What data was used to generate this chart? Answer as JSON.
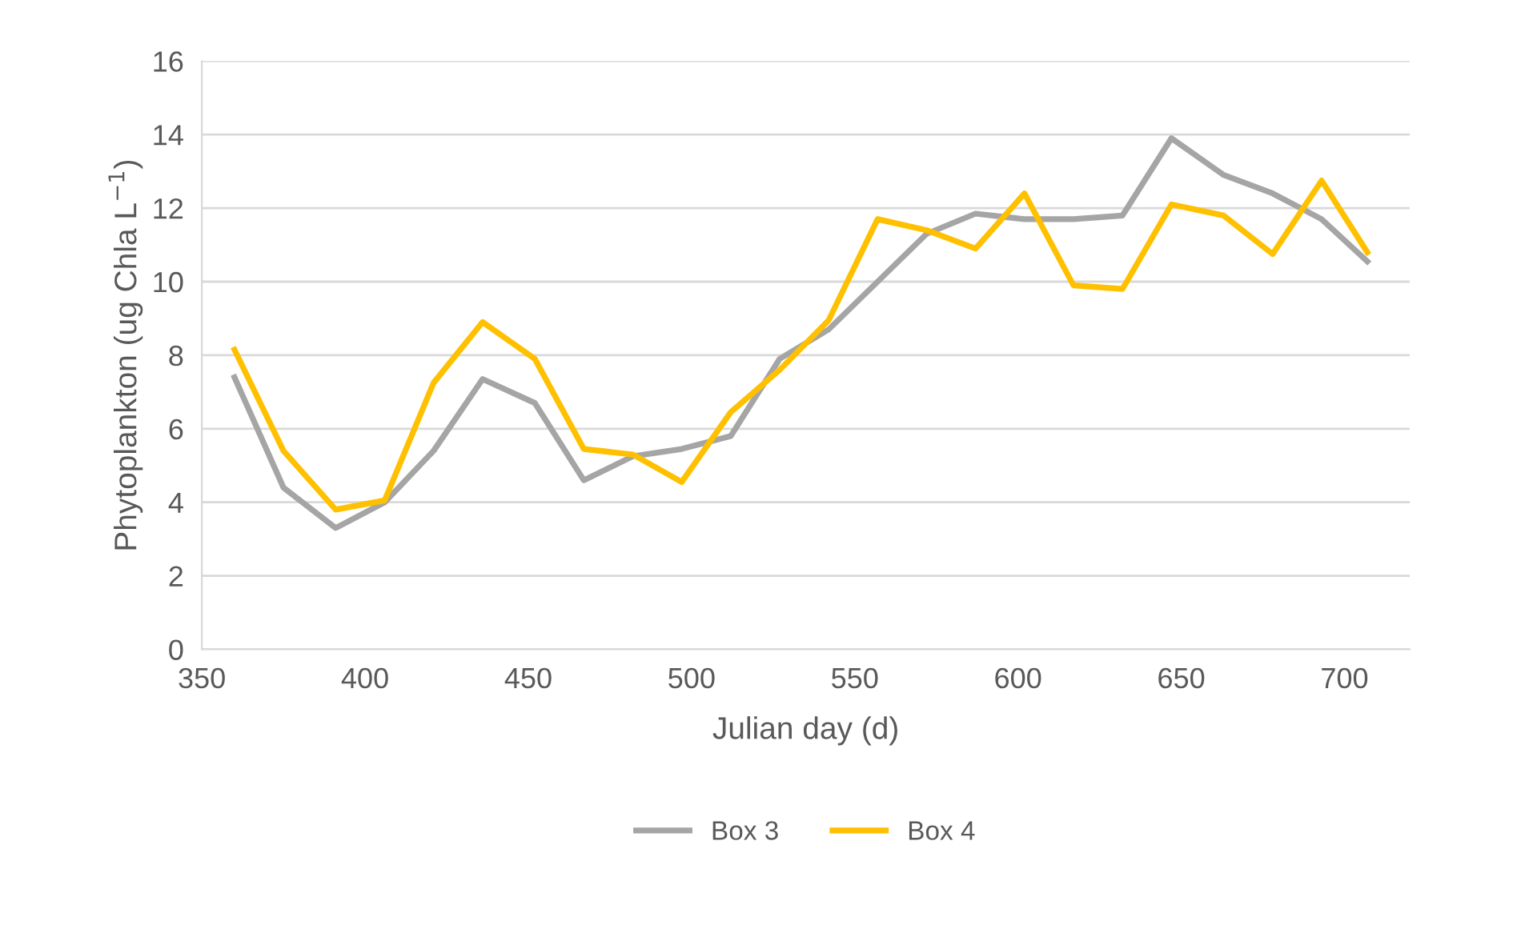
{
  "chart_data": {
    "type": "line",
    "xlabel": "Julian day (d)",
    "ylabel": "Phytoplankton (ug Chla L$^{−1}$)",
    "xlim": [
      350,
      720
    ],
    "xticks": [
      350,
      400,
      450,
      500,
      550,
      600,
      650,
      700
    ],
    "ylim": [
      0,
      16
    ],
    "yticks": [
      0,
      2,
      4,
      6,
      8,
      10,
      12,
      14,
      16
    ],
    "x": [
      360,
      375,
      391,
      406,
      421,
      436,
      452,
      467,
      482,
      497,
      512,
      527,
      542,
      557,
      572,
      587,
      602,
      617,
      632,
      647,
      663,
      678,
      693,
      707
    ],
    "series": [
      {
        "name": "Box 3",
        "color": "#a5a5a5",
        "values": [
          7.4,
          4.4,
          3.3,
          4.0,
          5.4,
          7.35,
          6.7,
          4.6,
          5.25,
          5.45,
          5.8,
          7.9,
          8.7,
          10.0,
          11.3,
          11.85,
          11.7,
          11.7,
          11.8,
          13.9,
          12.9,
          12.4,
          11.7,
          10.55
        ]
      },
      {
        "name": "Box 4",
        "color": "#ffc000",
        "values": [
          8.15,
          5.4,
          3.8,
          4.05,
          7.25,
          8.9,
          7.9,
          5.45,
          5.3,
          4.55,
          6.45,
          7.6,
          8.95,
          11.7,
          11.4,
          10.9,
          12.4,
          9.9,
          9.8,
          12.1,
          11.8,
          10.75,
          12.75,
          10.8
        ]
      }
    ],
    "grid": true,
    "legend": "bottom",
    "line_style": "solid",
    "marker": "none"
  }
}
